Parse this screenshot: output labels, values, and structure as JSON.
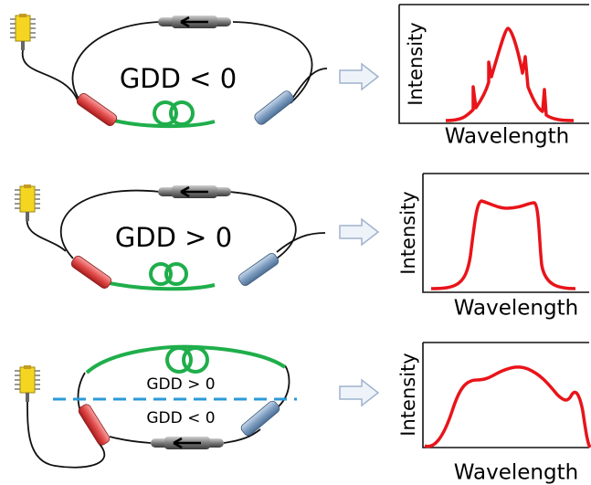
{
  "panels": [
    {
      "labels": [
        "GDD < 0"
      ],
      "y_label": "Intensity",
      "x_label": "Wavelength"
    },
    {
      "labels": [
        "GDD > 0"
      ],
      "y_label": "Intensity",
      "x_label": "Wavelength"
    },
    {
      "labels": [
        "GDD > 0",
        "GDD < 0"
      ],
      "y_label": "Intensity",
      "x_label": "Wavelength"
    }
  ]
}
